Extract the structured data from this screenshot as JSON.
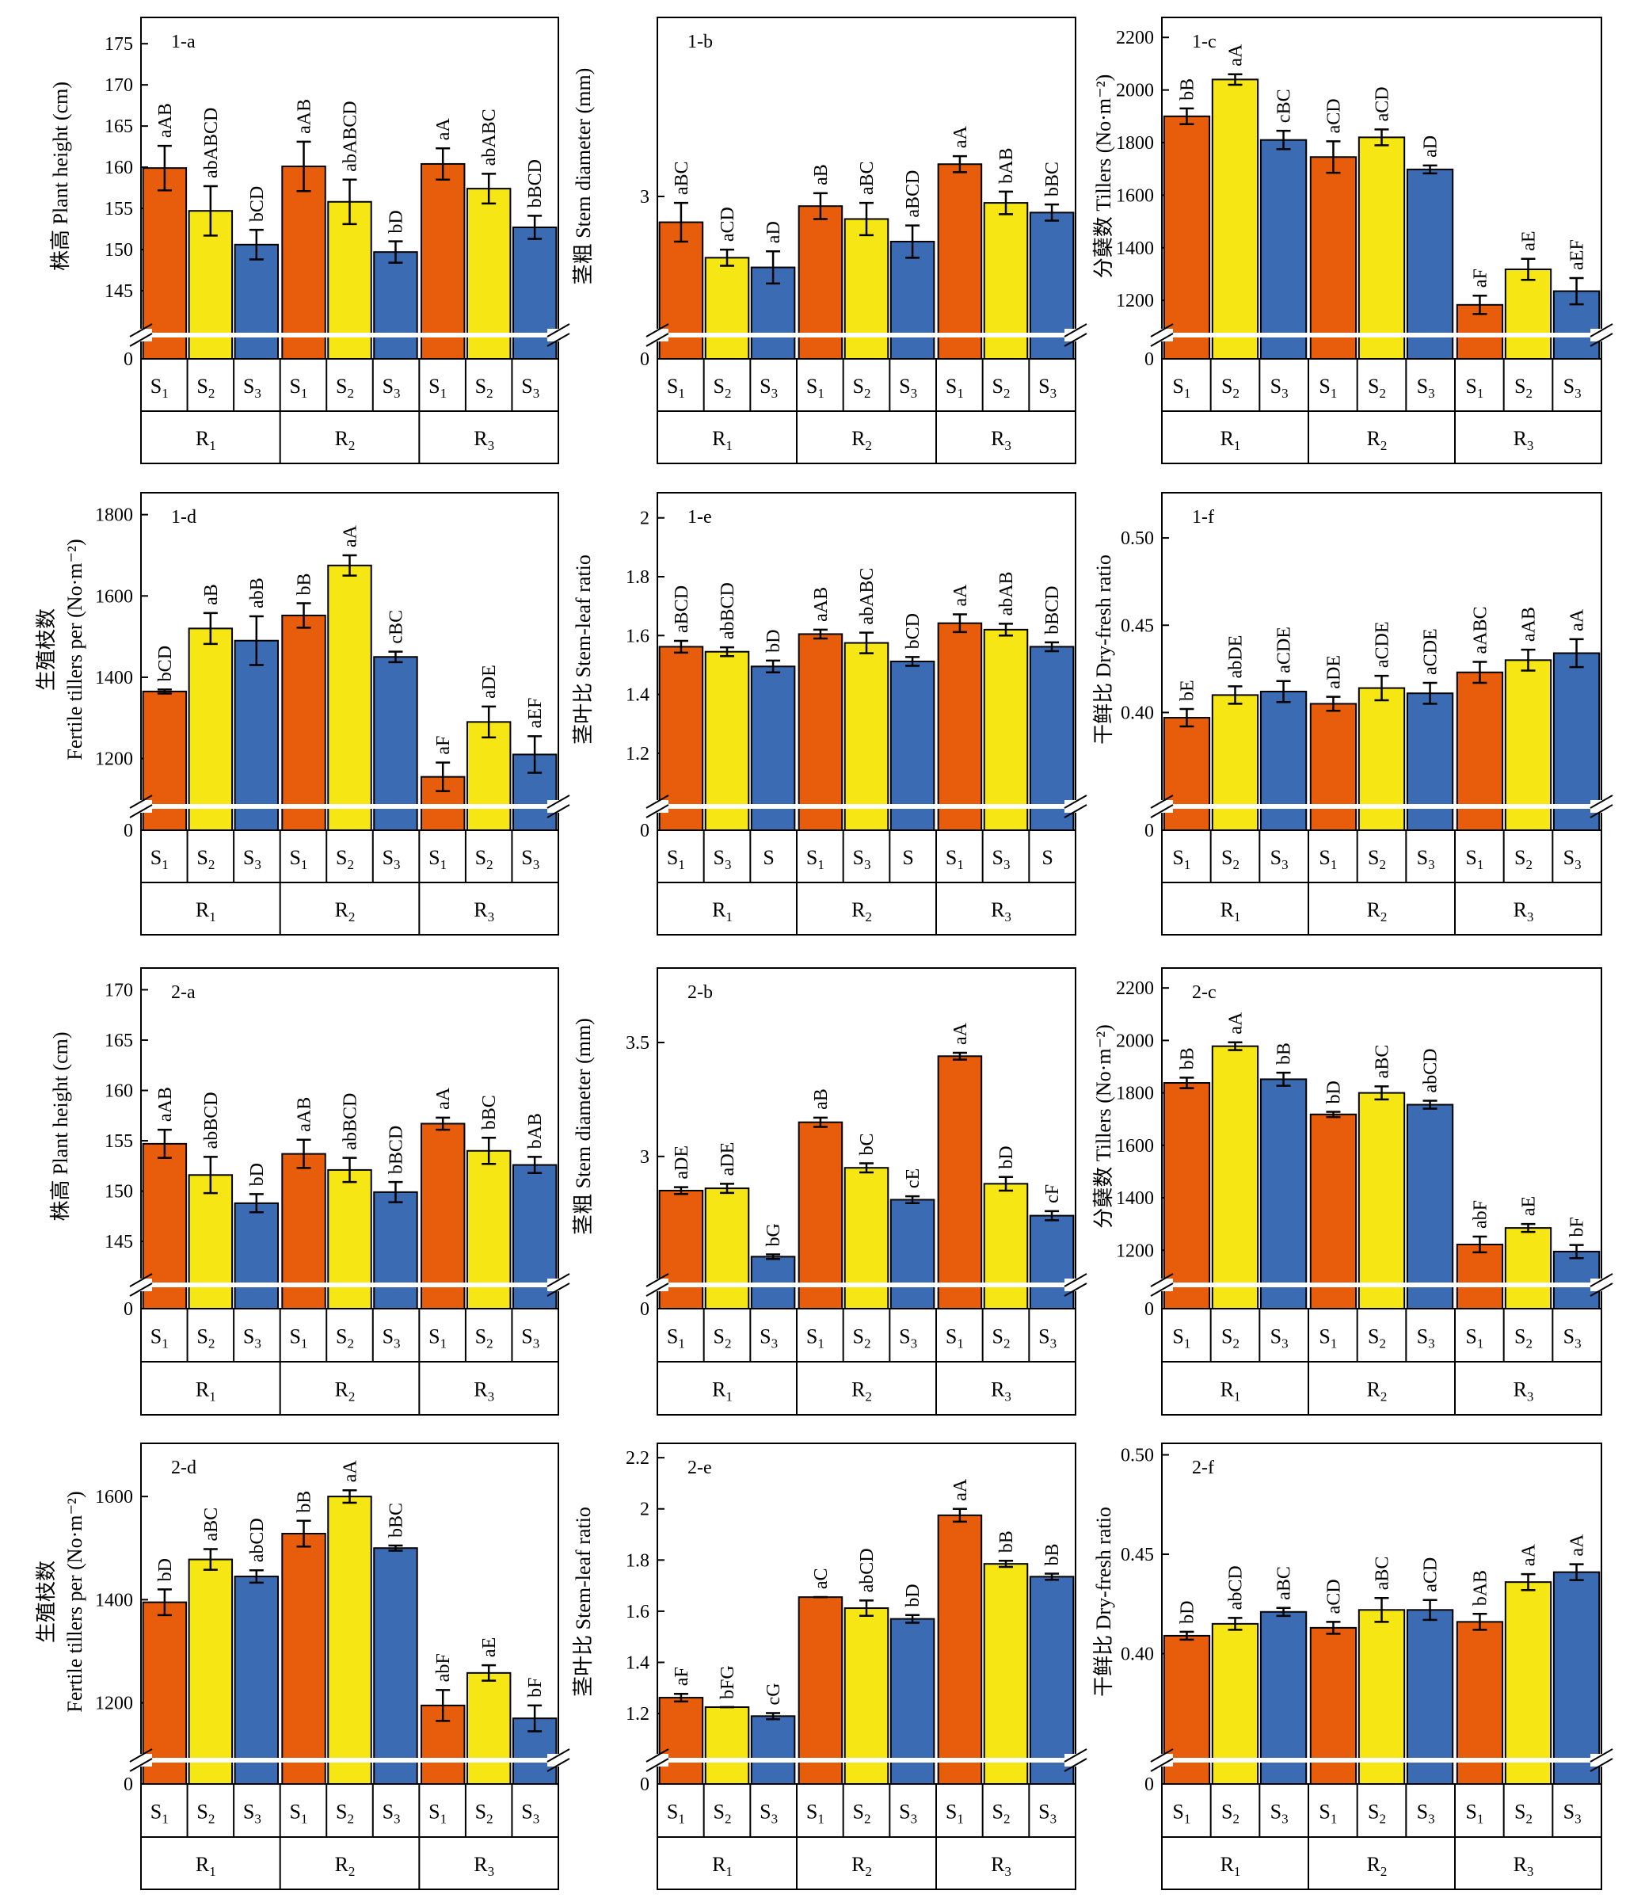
{
  "colors": {
    "S1": "#E85D0C",
    "S2": "#F5E614",
    "S3": "#3A6BB3"
  },
  "groups": [
    "R",
    "R",
    "R"
  ],
  "group_subs": [
    "1",
    "2",
    "3"
  ],
  "chart_data": [
    {
      "id": "1-a",
      "type": "bar",
      "ylabel": "株高 Plant height (cm)",
      "ylim": [
        140,
        178
      ],
      "yticks": [
        145,
        150,
        155,
        160,
        165,
        170,
        175
      ],
      "subcats": [
        [
          "S",
          "1"
        ],
        [
          "S",
          "2"
        ],
        [
          "S",
          "3"
        ]
      ],
      "values": [
        [
          159.9,
          154.7,
          150.6
        ],
        [
          160.1,
          155.8,
          149.7
        ],
        [
          160.4,
          157.4,
          152.7
        ]
      ],
      "errors": [
        [
          2.7,
          3.0,
          1.8
        ],
        [
          3.0,
          2.7,
          1.3
        ],
        [
          1.9,
          1.8,
          1.4
        ]
      ],
      "labels": [
        [
          "aAB",
          "abABCD",
          "bCD"
        ],
        [
          "aAB",
          "abABCD",
          "bD"
        ],
        [
          "aA",
          "abABC",
          "bBCD"
        ]
      ]
    },
    {
      "id": "1-b",
      "type": "bar",
      "ylabel": "茎粗 Stem diameter (mm)",
      "ylim": [
        2.58,
        3.55
      ],
      "yticks": [
        3.0
      ],
      "subcats": [
        [
          "S",
          "1"
        ],
        [
          "S",
          "2"
        ],
        [
          "S",
          "3"
        ]
      ],
      "values": [
        [
          2.92,
          2.81,
          2.78
        ],
        [
          2.97,
          2.93,
          2.86
        ],
        [
          3.1,
          2.98,
          2.95
        ]
      ],
      "errors": [
        [
          0.06,
          0.025,
          0.05
        ],
        [
          0.04,
          0.05,
          0.05
        ],
        [
          0.025,
          0.035,
          0.025
        ]
      ],
      "labels": [
        [
          "aBC",
          "aCD",
          "aD"
        ],
        [
          "aB",
          "aBC",
          "aBCD"
        ],
        [
          "aA",
          "bAB",
          "bBC"
        ]
      ]
    },
    {
      "id": "1-c",
      "type": "bar",
      "ylabel": "分蘖数 Tillers (No·m⁻²)",
      "ylim": [
        1080,
        2270
      ],
      "yticks": [
        1200,
        1400,
        1600,
        1800,
        2000,
        2200
      ],
      "subcats": [
        [
          "S",
          "1"
        ],
        [
          "S",
          "2"
        ],
        [
          "S",
          "3"
        ]
      ],
      "values": [
        [
          1900,
          2040,
          1810
        ],
        [
          1745,
          1820,
          1698
        ],
        [
          1183,
          1318,
          1235
        ]
      ],
      "errors": [
        [
          30,
          20,
          35
        ],
        [
          60,
          30,
          15
        ],
        [
          35,
          40,
          50
        ]
      ],
      "labels": [
        [
          "bB",
          "aA",
          "cBC"
        ],
        [
          "aCD",
          "aCD",
          "aD"
        ],
        [
          "aF",
          "aE",
          "aEF"
        ]
      ]
    },
    {
      "id": "1-d",
      "type": "bar",
      "ylabel": "生殖枝数|Fertile tillers per (No·m⁻²)",
      "ylim": [
        1090,
        1850
      ],
      "yticks": [
        1200,
        1400,
        1600,
        1800
      ],
      "subcats": [
        [
          "S",
          "1"
        ],
        [
          "S",
          "2"
        ],
        [
          "S",
          "3"
        ]
      ],
      "values": [
        [
          1365,
          1520,
          1490
        ],
        [
          1552,
          1675,
          1450
        ],
        [
          1155,
          1290,
          1210
        ]
      ],
      "errors": [
        [
          5,
          38,
          60
        ],
        [
          30,
          25,
          13
        ],
        [
          35,
          38,
          45
        ]
      ],
      "labels": [
        [
          "bCD",
          "aB",
          "abB"
        ],
        [
          "bB",
          "aA",
          "cBC"
        ],
        [
          "aF",
          "aDE",
          "aEF"
        ]
      ]
    },
    {
      "id": "1-e",
      "type": "bar",
      "ylabel": "茎叶比 Stem-leaf ratio",
      "ylim": [
        1.03,
        2.08
      ],
      "yticks": [
        1.2,
        1.4,
        1.6,
        1.8,
        2.0
      ],
      "subcats": [
        [
          "S",
          "1"
        ],
        [
          "S",
          "3"
        ],
        [
          "S",
          ""
        ]
      ],
      "values": [
        [
          1.562,
          1.545,
          1.495
        ],
        [
          1.605,
          1.575,
          1.512
        ],
        [
          1.642,
          1.62,
          1.562
        ]
      ],
      "errors": [
        [
          0.02,
          0.015,
          0.02
        ],
        [
          0.015,
          0.035,
          0.015
        ],
        [
          0.03,
          0.02,
          0.015
        ]
      ],
      "labels": [
        [
          "aBCD",
          "abBCD",
          "bD"
        ],
        [
          "aAB",
          "abABC",
          "bCD"
        ],
        [
          "aA",
          "abAB",
          "bBCD"
        ]
      ]
    },
    {
      "id": "1-f",
      "type": "bar",
      "ylabel": "干鲜比 Dry-fresh ratio",
      "ylim": [
        0.348,
        0.525
      ],
      "yticks": [
        0.4,
        0.45,
        0.5
      ],
      "subcats": [
        [
          "S",
          "1"
        ],
        [
          "S",
          "2"
        ],
        [
          "S",
          "3"
        ]
      ],
      "values": [
        [
          0.397,
          0.41,
          0.412
        ],
        [
          0.405,
          0.414,
          0.411
        ],
        [
          0.423,
          0.43,
          0.434
        ]
      ],
      "errors": [
        [
          0.005,
          0.005,
          0.006
        ],
        [
          0.004,
          0.007,
          0.006
        ],
        [
          0.006,
          0.006,
          0.008
        ]
      ],
      "labels": [
        [
          "bE",
          "abDE",
          "aCDE"
        ],
        [
          "aDE",
          "aCDE",
          "aCDE"
        ],
        [
          "aABC",
          "aAB",
          "aA"
        ]
      ]
    },
    {
      "id": "2-a",
      "type": "bar",
      "ylabel": "株高 Plant height (cm)",
      "ylim": [
        141,
        172
      ],
      "yticks": [
        145,
        150,
        155,
        160,
        165,
        170
      ],
      "subcats": [
        [
          "S",
          "1"
        ],
        [
          "S",
          "2"
        ],
        [
          "S",
          "3"
        ]
      ],
      "values": [
        [
          154.7,
          151.6,
          148.8
        ],
        [
          153.7,
          152.1,
          149.9
        ],
        [
          156.7,
          154.0,
          152.6
        ]
      ],
      "errors": [
        [
          1.4,
          1.8,
          0.9
        ],
        [
          1.4,
          1.2,
          1.0
        ],
        [
          0.6,
          1.3,
          0.8
        ]
      ],
      "labels": [
        [
          "aAB",
          "abBCD",
          "bD"
        ],
        [
          "aAB",
          "abBCD",
          "bBCD"
        ],
        [
          "aA",
          "bBC",
          "bAB"
        ]
      ]
    },
    {
      "id": "2-b",
      "type": "bar",
      "ylabel": "茎粗 Stem diameter (mm)",
      "ylim": [
        2.45,
        3.82
      ],
      "yticks": [
        3.0,
        3.5
      ],
      "subcats": [
        [
          "S",
          "1"
        ],
        [
          "S",
          "2"
        ],
        [
          "S",
          "3"
        ]
      ],
      "values": [
        [
          2.85,
          2.86,
          2.56
        ],
        [
          3.15,
          2.95,
          2.81
        ],
        [
          3.44,
          2.88,
          2.74
        ]
      ],
      "errors": [
        [
          0.015,
          0.02,
          0.01
        ],
        [
          0.02,
          0.02,
          0.015
        ],
        [
          0.015,
          0.03,
          0.02
        ]
      ],
      "labels": [
        [
          "aDE",
          "aDE",
          "bG"
        ],
        [
          "aB",
          "bC",
          "cE"
        ],
        [
          "aA",
          "bD",
          "cF"
        ]
      ]
    },
    {
      "id": "2-c",
      "type": "bar",
      "ylabel": "分蘖数 Tillers (No·m⁻²)",
      "ylim": [
        1080,
        2270
      ],
      "yticks": [
        1200,
        1400,
        1600,
        1800,
        2000,
        2200
      ],
      "subcats": [
        [
          "S",
          "1"
        ],
        [
          "S",
          "2"
        ],
        [
          "S",
          "3"
        ]
      ],
      "values": [
        [
          1838,
          1978,
          1852
        ],
        [
          1718,
          1800,
          1755
        ],
        [
          1222,
          1285,
          1195
        ]
      ],
      "errors": [
        [
          20,
          15,
          25
        ],
        [
          10,
          25,
          15
        ],
        [
          30,
          15,
          25
        ]
      ],
      "labels": [
        [
          "bB",
          "aA",
          "bB"
        ],
        [
          "bD",
          "aBC",
          "abCD"
        ],
        [
          "abF",
          "aE",
          "bF"
        ]
      ]
    },
    {
      "id": "2-d",
      "type": "bar",
      "ylabel": "生殖枝数|Fertile tillers per (No·m⁻²)",
      "ylim": [
        1095,
        1700
      ],
      "yticks": [
        1200,
        1400,
        1600
      ],
      "subcats": [
        [
          "S",
          "1"
        ],
        [
          "S",
          "2"
        ],
        [
          "S",
          "3"
        ]
      ],
      "values": [
        [
          1395,
          1478,
          1445
        ],
        [
          1528,
          1600,
          1500
        ],
        [
          1195,
          1258,
          1170
        ]
      ],
      "errors": [
        [
          25,
          20,
          12
        ],
        [
          25,
          12,
          5
        ],
        [
          30,
          15,
          25
        ]
      ],
      "labels": [
        [
          "bD",
          "aBC",
          "abCD"
        ],
        [
          "bB",
          "aA",
          "bBC"
        ],
        [
          "abF",
          "aE",
          "bF"
        ]
      ]
    },
    {
      "id": "2-e",
      "type": "bar",
      "ylabel": "茎叶比 Stem-leaf ratio",
      "ylim": [
        1.03,
        2.25
      ],
      "yticks": [
        1.2,
        1.4,
        1.6,
        1.8,
        2.0,
        2.2
      ],
      "subcats": [
        [
          "S",
          "1"
        ],
        [
          "S",
          "2"
        ],
        [
          "S",
          "3"
        ]
      ],
      "values": [
        [
          1.262,
          1.225,
          1.19
        ],
        [
          1.655,
          1.612,
          1.57
        ],
        [
          1.975,
          1.785,
          1.735
        ]
      ],
      "errors": [
        [
          0.015,
          0.0,
          0.012
        ],
        [
          0.0,
          0.03,
          0.015
        ],
        [
          0.025,
          0.012,
          0.012
        ]
      ],
      "labels": [
        [
          "aF",
          "bFG",
          "cG"
        ],
        [
          "aC",
          "abCD",
          "bD"
        ],
        [
          "aA",
          "bB",
          "bB"
        ]
      ]
    },
    {
      "id": "2-f",
      "type": "bar",
      "ylabel": "干鲜比 Dry-fresh ratio",
      "ylim": [
        0.348,
        0.505
      ],
      "yticks": [
        0.4,
        0.45,
        0.5
      ],
      "subcats": [
        [
          "S",
          "1"
        ],
        [
          "S",
          "2"
        ],
        [
          "S",
          "3"
        ]
      ],
      "values": [
        [
          0.409,
          0.415,
          0.421
        ],
        [
          0.413,
          0.422,
          0.422
        ],
        [
          0.416,
          0.436,
          0.441
        ]
      ],
      "errors": [
        [
          0.002,
          0.003,
          0.002
        ],
        [
          0.003,
          0.006,
          0.005
        ],
        [
          0.004,
          0.004,
          0.004
        ]
      ],
      "labels": [
        [
          "bD",
          "abCD",
          "aBC"
        ],
        [
          "aCD",
          "aBC",
          "aCD"
        ],
        [
          "bAB",
          "aA",
          "aA"
        ]
      ]
    }
  ]
}
